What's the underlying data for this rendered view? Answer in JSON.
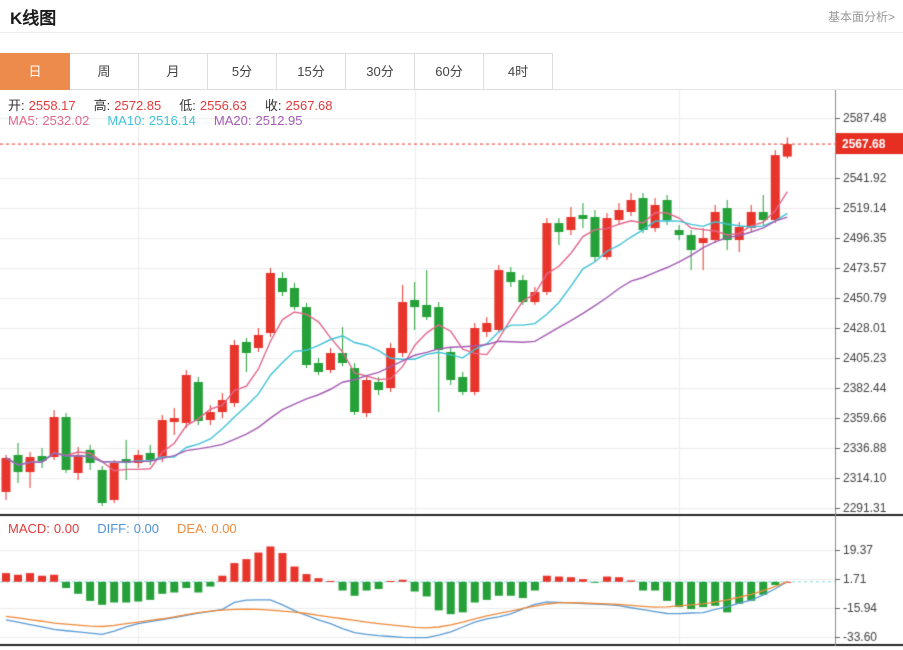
{
  "header": {
    "title": "K线图",
    "link": "基本面分析>"
  },
  "tabs": {
    "items": [
      "日",
      "周",
      "月",
      "5分",
      "15分",
      "30分",
      "60分",
      "4时"
    ],
    "active_index": 0
  },
  "ohlc_row": {
    "items": [
      {
        "label": "开:",
        "value": "2558.17"
      },
      {
        "label": "高:",
        "value": "2572.85"
      },
      {
        "label": "低:",
        "value": "2556.63"
      },
      {
        "label": "收:",
        "value": "2567.68"
      }
    ]
  },
  "ma_row": {
    "items": [
      {
        "label": "MA5:",
        "value": "2532.02",
        "color": "#e2688c"
      },
      {
        "label": "MA10:",
        "value": "2516.14",
        "color": "#3fc3d8"
      },
      {
        "label": "MA20:",
        "value": "2512.95",
        "color": "#a45cb4"
      }
    ]
  },
  "macd_row": {
    "items": [
      {
        "label": "MACD:",
        "value": "0.00",
        "color": "#e23b3b"
      },
      {
        "label": "DIFF:",
        "value": "0.00",
        "color": "#4f94d8"
      },
      {
        "label": "DEA:",
        "value": "0.00",
        "color": "#ef8b3c"
      }
    ]
  },
  "colors": {
    "accent_orange": "#ed8b4c",
    "up_red": "#e8352c",
    "down_green": "#26a139",
    "ma5_pink": "#e2688c",
    "ma10_cyan": "#3fc3d8",
    "ma20_purple": "#a45cb4",
    "diff_blue": "#5b9bd5",
    "dea_orange": "#ef8b3c",
    "badge_red": "#e62e21",
    "badge_text": "#ffffff",
    "axis_text": "#444444",
    "grid": "#ededed",
    "axis_line": "#8c8c8c",
    "pane_border": "#262626",
    "zero_dash_teal": "#8fd8e0",
    "ohlc_label": "#333333",
    "ohlc_value": "#e23b3b"
  },
  "chart_data": {
    "type": "candlestick",
    "title": "K线图 daily candles with MA5/MA10/MA20 overlays and MACD pane",
    "candle_format": "open,close,high,low",
    "price_axis": {
      "ticks": [
        "2587.48",
        "2541.92",
        "2519.14",
        "2496.35",
        "2473.57",
        "2450.79",
        "2428.01",
        "2405.23",
        "2382.44",
        "2359.66",
        "2336.88",
        "2314.10",
        "2291.31"
      ],
      "badge": "2567.68"
    },
    "ma_periods": [
      5,
      10,
      20
    ],
    "candles": [
      [
        2303.5,
        2329.3,
        2331.6,
        2297.4
      ],
      [
        2331.6,
        2318.6,
        2340.7,
        2310.3
      ],
      [
        2318.6,
        2330.0,
        2333.8,
        2306.5
      ],
      [
        2330.8,
        2327.0,
        2336.9,
        2321.7
      ],
      [
        2330.0,
        2360.4,
        2365.7,
        2327.8
      ],
      [
        2360.4,
        2320.2,
        2363.4,
        2317.9
      ],
      [
        2317.9,
        2331.6,
        2337.6,
        2312.6
      ],
      [
        2335.4,
        2325.5,
        2339.2,
        2320.2
      ],
      [
        2320.2,
        2295.1,
        2323.2,
        2292.8
      ],
      [
        2297.4,
        2325.5,
        2327.8,
        2295.1
      ],
      [
        2328.5,
        2325.5,
        2343.0,
        2312.6
      ],
      [
        2325.5,
        2331.6,
        2335.4,
        2321.7
      ],
      [
        2333.1,
        2327.8,
        2339.2,
        2324.0
      ],
      [
        2329.3,
        2358.1,
        2361.9,
        2326.2
      ],
      [
        2356.6,
        2359.6,
        2367.2,
        2346.7
      ],
      [
        2355.9,
        2392.3,
        2396.1,
        2352.1
      ],
      [
        2387.0,
        2357.4,
        2390.8,
        2354.3
      ],
      [
        2358.1,
        2364.2,
        2369.5,
        2354.3
      ],
      [
        2364.2,
        2373.3,
        2378.6,
        2359.6
      ],
      [
        2371.0,
        2415.1,
        2418.9,
        2368.0
      ],
      [
        2417.4,
        2409.0,
        2420.4,
        2394.6
      ],
      [
        2412.8,
        2422.7,
        2428.0,
        2409.8
      ],
      [
        2424.2,
        2469.8,
        2473.5,
        2421.2
      ],
      [
        2466.0,
        2455.3,
        2470.5,
        2452.3
      ],
      [
        2458.4,
        2443.9,
        2462.2,
        2441.7
      ],
      [
        2443.9,
        2399.9,
        2447.0,
        2397.6
      ],
      [
        2401.4,
        2394.6,
        2405.2,
        2392.3
      ],
      [
        2396.1,
        2409.0,
        2412.8,
        2393.8
      ],
      [
        2409.0,
        2401.4,
        2428.7,
        2399.1
      ],
      [
        2397.6,
        2364.2,
        2401.4,
        2361.9
      ],
      [
        2363.4,
        2388.5,
        2392.3,
        2360.4
      ],
      [
        2387.0,
        2380.9,
        2390.8,
        2377.1
      ],
      [
        2382.4,
        2412.8,
        2416.6,
        2379.4
      ],
      [
        2409.0,
        2447.7,
        2460.7,
        2406.0
      ],
      [
        2449.3,
        2443.9,
        2462.9,
        2426.5
      ],
      [
        2445.5,
        2436.3,
        2472.0,
        2434.1
      ],
      [
        2443.9,
        2411.3,
        2447.7,
        2364.2
      ],
      [
        2409.8,
        2388.5,
        2412.8,
        2384.7
      ],
      [
        2390.8,
        2379.4,
        2394.6,
        2377.1
      ],
      [
        2379.4,
        2428.0,
        2431.8,
        2377.1
      ],
      [
        2425.0,
        2431.8,
        2436.3,
        2421.2
      ],
      [
        2426.5,
        2472.0,
        2475.8,
        2424.2
      ],
      [
        2470.5,
        2462.9,
        2474.3,
        2459.1
      ],
      [
        2464.4,
        2447.7,
        2468.2,
        2445.5
      ],
      [
        2447.7,
        2455.3,
        2459.1,
        2445.5
      ],
      [
        2455.3,
        2507.7,
        2511.5,
        2453.0
      ],
      [
        2507.7,
        2500.9,
        2511.5,
        2491.0
      ],
      [
        2502.4,
        2512.3,
        2519.9,
        2498.6
      ],
      [
        2513.8,
        2510.8,
        2522.9,
        2503.9
      ],
      [
        2512.3,
        2481.9,
        2517.6,
        2478.1
      ],
      [
        2481.9,
        2511.5,
        2515.3,
        2479.6
      ],
      [
        2510.0,
        2517.6,
        2522.9,
        2506.2
      ],
      [
        2516.1,
        2525.2,
        2530.5,
        2513.0
      ],
      [
        2526.7,
        2502.4,
        2530.5,
        2500.1
      ],
      [
        2503.9,
        2521.4,
        2526.7,
        2500.9
      ],
      [
        2525.2,
        2510.0,
        2529.0,
        2506.2
      ],
      [
        2502.4,
        2498.6,
        2506.2,
        2494.8
      ],
      [
        2498.6,
        2487.2,
        2502.4,
        2472.0
      ],
      [
        2492.5,
        2496.3,
        2503.9,
        2472.0
      ],
      [
        2494.8,
        2516.1,
        2521.4,
        2492.5
      ],
      [
        2519.1,
        2494.8,
        2525.2,
        2487.2
      ],
      [
        2494.8,
        2504.7,
        2508.5,
        2485.7
      ],
      [
        2503.9,
        2516.1,
        2521.4,
        2500.9
      ],
      [
        2516.1,
        2510.0,
        2529.0,
        2506.2
      ],
      [
        2510.0,
        2559.3,
        2563.1,
        2507.7
      ],
      [
        2558.17,
        2567.68,
        2572.85,
        2556.63
      ]
    ],
    "macd": {
      "ticks": [
        "19.37",
        "1.71",
        "-15.94",
        "-33.60"
      ],
      "histogram": [
        5.3,
        4.3,
        5.3,
        3.7,
        4.3,
        -3.8,
        -7.3,
        -11.6,
        -14,
        -12.6,
        -12.6,
        -12,
        -11,
        -7.3,
        -6.5,
        -3.8,
        -6.5,
        -2.9,
        3.7,
        11.4,
        13.8,
        17.8,
        21.5,
        17.5,
        9.3,
        4.7,
        2.2,
        0.5,
        -5.3,
        -8.5,
        -5.3,
        -4.4,
        0.5,
        1.2,
        -5.9,
        -8.9,
        -17.4,
        -19.7,
        -18.6,
        -12.6,
        -11,
        -8.5,
        -8.5,
        -9.9,
        -5.3,
        3.7,
        3.2,
        2.8,
        1.6,
        -0.5,
        3.2,
        2.8,
        0.8,
        -5.3,
        -5.3,
        -11.6,
        -15.4,
        -16.6,
        -15.4,
        -14.6,
        -18.6,
        -13.4,
        -11.6,
        -7.9,
        -2,
        0
      ],
      "diff": [
        -23.2,
        -24.5,
        -26,
        -27.5,
        -29,
        -29.8,
        -30.5,
        -31.3,
        -32,
        -30,
        -27.5,
        -25.5,
        -24.3,
        -23,
        -21.8,
        -20.5,
        -19,
        -18,
        -16.8,
        -12.5,
        -11.2,
        -11,
        -11,
        -14,
        -17.5,
        -20.5,
        -23.2,
        -25.5,
        -28.5,
        -31,
        -32,
        -32.8,
        -33.3,
        -33.8,
        -34,
        -34,
        -32.5,
        -30.5,
        -27.5,
        -24.5,
        -22.5,
        -21.3,
        -19.5,
        -16.5,
        -13.8,
        -12.2,
        -12.5,
        -12.8,
        -13.2,
        -13.6,
        -13.9,
        -14.5,
        -15.8,
        -17,
        -18.2,
        -19.3,
        -19.4,
        -19,
        -18.7,
        -16.8,
        -15.2,
        -13,
        -11.2,
        -8,
        -4.2,
        0
      ],
      "dea": [
        -21,
        -22,
        -23,
        -24,
        -25.2,
        -25.8,
        -26.4,
        -27,
        -27.2,
        -26.5,
        -25.5,
        -24.5,
        -23.5,
        -22.5,
        -21.3,
        -20,
        -18.8,
        -17.8,
        -17.2,
        -16.8,
        -16.6,
        -16.8,
        -17.2,
        -17.8,
        -18.4,
        -19.3,
        -20.5,
        -21.5,
        -22.5,
        -23.5,
        -24.5,
        -25.4,
        -26.2,
        -27,
        -27.7,
        -28.1,
        -27.5,
        -26.2,
        -24.5,
        -22.6,
        -20.8,
        -19.2,
        -17.8,
        -16.2,
        -14.8,
        -13.5,
        -12.8,
        -12.7,
        -12.9,
        -13.2,
        -13.4,
        -13.8,
        -14.3,
        -14.9,
        -15.4,
        -15.2,
        -14.6,
        -14,
        -13.4,
        -12.4,
        -11,
        -9.4,
        -7.6,
        -5.4,
        -2.8,
        0
      ]
    }
  }
}
